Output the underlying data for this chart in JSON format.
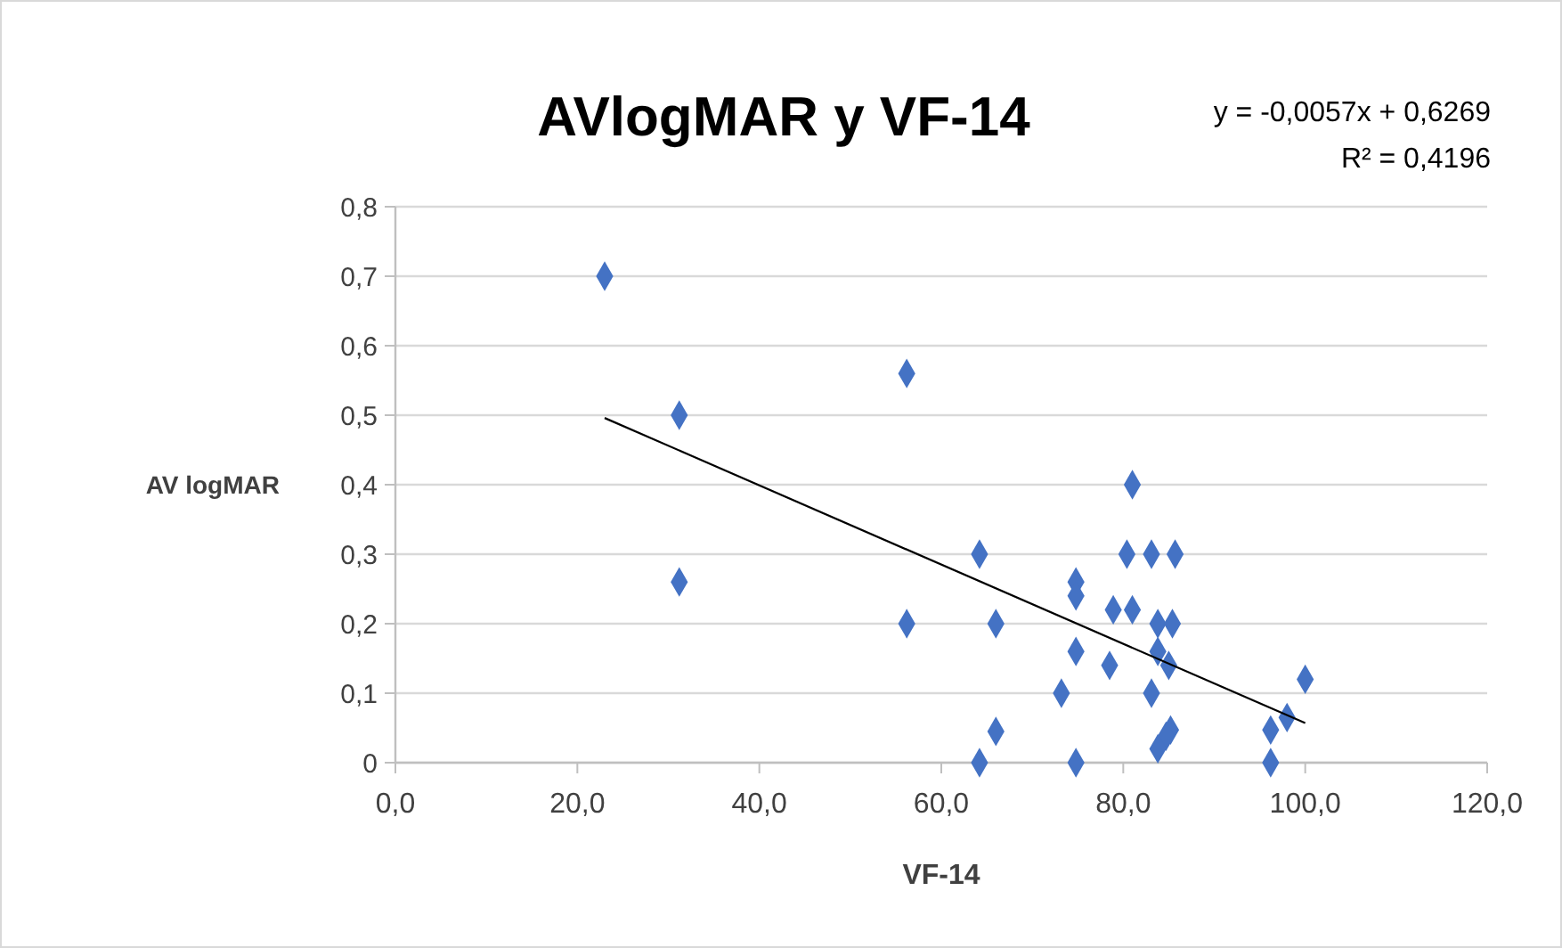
{
  "chart_data": {
    "type": "scatter",
    "title": "AVlogMAR y VF-14",
    "xlabel": "VF-14",
    "ylabel": "AV logMAR",
    "annotations": [
      "y = -0,0057x + 0,6269",
      "R² = 0,4196"
    ],
    "xlim": [
      0,
      120
    ],
    "xticks": [
      {
        "value": 0,
        "label": "0,0"
      },
      {
        "value": 20,
        "label": "20,0"
      },
      {
        "value": 40,
        "label": "40,0"
      },
      {
        "value": 60,
        "label": "60,0"
      },
      {
        "value": 80,
        "label": "80,0"
      },
      {
        "value": 100,
        "label": "100,0"
      },
      {
        "value": 120,
        "label": "120,0"
      }
    ],
    "ylim": [
      0,
      0.8
    ],
    "yticks": [
      0,
      {
        "value": 0.1,
        "label": "0,1"
      },
      {
        "value": 0.2,
        "label": "0,2"
      },
      {
        "value": 0.3,
        "label": "0,3"
      },
      {
        "value": 0.4,
        "label": "0,4"
      },
      {
        "value": 0.5,
        "label": "0,5"
      },
      {
        "value": 0.6,
        "label": "0,6"
      },
      {
        "value": 0.7,
        "label": "0,7"
      },
      {
        "value": 0.8,
        "label": "0,8"
      }
    ],
    "grid": "y",
    "marker": "diamond",
    "series": [
      {
        "color": "#4472c4",
        "x": [
          23.0,
          31.2,
          31.2,
          56.2,
          56.2,
          64.2,
          64.2,
          66.0,
          66.0,
          73.2,
          74.8,
          74.8,
          74.8,
          74.8,
          78.5,
          78.9,
          81.0,
          80.4,
          83.1,
          85.7,
          81.0,
          83.8,
          85.4,
          83.8,
          85.0,
          83.1,
          85.2,
          84.7,
          83.8,
          96.2,
          98.0,
          100.0,
          96.2
        ],
        "values": [
          0.7,
          0.5,
          0.26,
          0.56,
          0.2,
          0.3,
          0.0,
          0.2,
          0.045,
          0.1,
          0.26,
          0.24,
          0.16,
          0.0,
          0.14,
          0.22,
          0.4,
          0.3,
          0.3,
          0.3,
          0.22,
          0.2,
          0.2,
          0.16,
          0.14,
          0.1,
          0.047,
          0.038,
          0.02,
          0.047,
          0.065,
          0.12,
          0.0
        ]
      },
      {
        "type": "line",
        "color": "#000000",
        "marker": "none",
        "x": [
          23,
          100
        ],
        "values": [
          0.496,
          0.057
        ]
      }
    ]
  }
}
